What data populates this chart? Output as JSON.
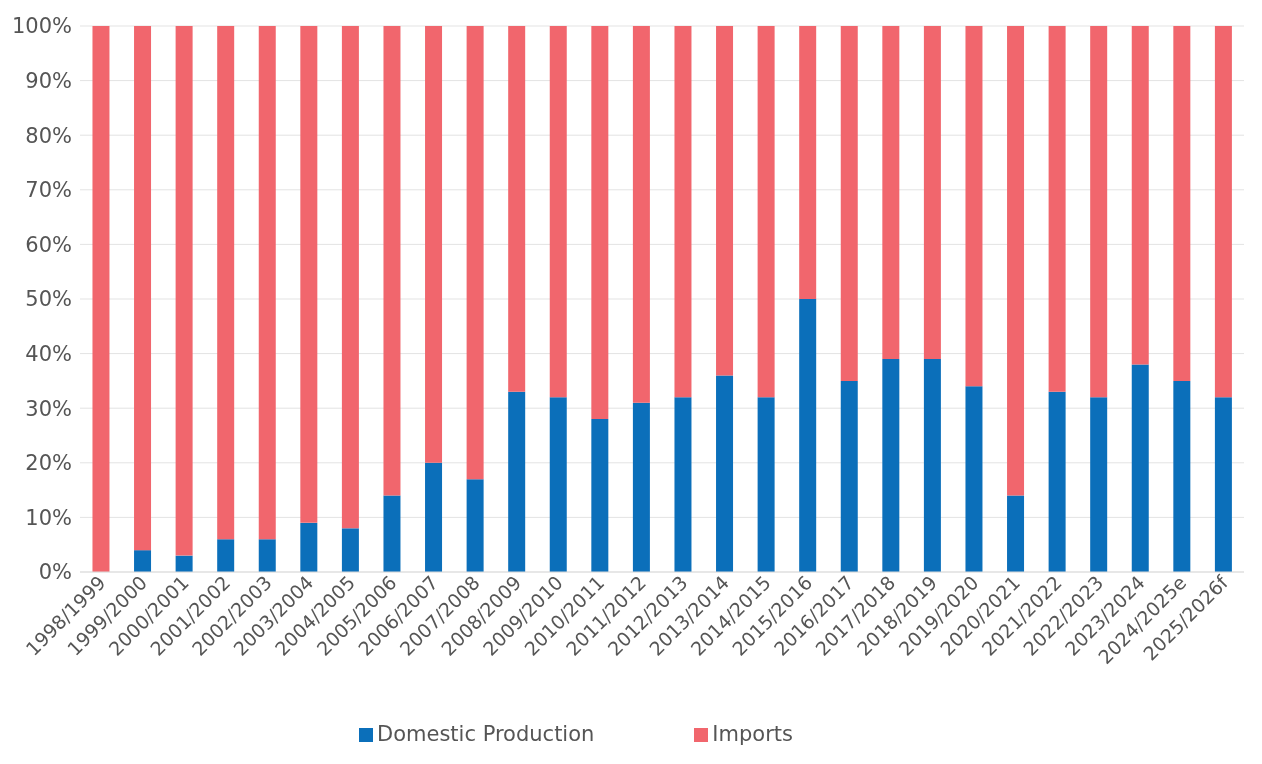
{
  "chart_data": {
    "type": "bar",
    "stacked": true,
    "categories": [
      "1998/1999",
      "1999/2000",
      "2000/2001",
      "2001/2002",
      "2002/2003",
      "2003/2004",
      "2004/2005",
      "2005/2006",
      "2006/2007",
      "2007/2008",
      "2008/2009",
      "2009/2010",
      "2010/2011",
      "2011/2012",
      "2012/2013",
      "2013/2014",
      "2014/2015",
      "2015/2016",
      "2016/2017",
      "2017/2018",
      "2018/2019",
      "2019/2020",
      "2020/2021",
      "2021/2022",
      "2022/2023",
      "2023/2024",
      "2024/2025e",
      "2025/2026f"
    ],
    "series": [
      {
        "name": "Domestic Production",
        "color": "#0b6fba",
        "values": [
          0,
          4,
          3,
          6,
          6,
          9,
          8,
          14,
          20,
          17,
          33,
          32,
          28,
          31,
          32,
          36,
          32,
          50,
          35,
          39,
          39,
          34,
          14,
          33,
          32,
          38,
          35,
          32
        ]
      },
      {
        "name": "Imports",
        "color": "#f1666d",
        "values": [
          100,
          96,
          97,
          94,
          94,
          91,
          92,
          86,
          80,
          83,
          67,
          68,
          72,
          69,
          68,
          64,
          68,
          50,
          65,
          61,
          61,
          66,
          86,
          67,
          68,
          62,
          65,
          68
        ]
      }
    ],
    "ylim": [
      0,
      100
    ],
    "yticks": [
      {
        "value": 0,
        "label": "0%"
      },
      {
        "value": 10,
        "label": "10%"
      },
      {
        "value": 20,
        "label": "20%"
      },
      {
        "value": 30,
        "label": "30%"
      },
      {
        "value": 40,
        "label": "40%"
      },
      {
        "value": 50,
        "label": "50%"
      },
      {
        "value": 60,
        "label": "60%"
      },
      {
        "value": 70,
        "label": "70%"
      },
      {
        "value": 80,
        "label": "80%"
      },
      {
        "value": 90,
        "label": "90%"
      },
      {
        "value": 100,
        "label": "100%"
      }
    ],
    "grid": "y",
    "legend": "bottom"
  }
}
